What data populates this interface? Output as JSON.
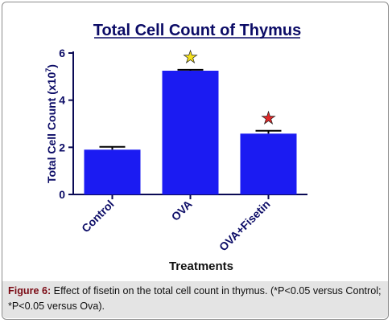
{
  "chart_data": {
    "type": "bar",
    "title": "Total Cell Count of Thymus",
    "xlabel": "Treatments",
    "ylabel": "Total Cell  Count (x10",
    "ylabel_superscript": "7",
    "ylabel_suffix": ")",
    "categories": [
      "Control",
      "OVA",
      "OVA+Fisetin"
    ],
    "values": [
      1.9,
      5.25,
      2.58
    ],
    "errors": [
      0.12,
      0.04,
      0.12
    ],
    "ylim": [
      0,
      6
    ],
    "yticks": [
      "0",
      "2",
      "4",
      "6"
    ],
    "significance_markers": [
      {
        "category": "OVA",
        "symbol": "★",
        "color": "#f5e11b"
      },
      {
        "category": "OVA+Fisetin",
        "symbol": "★",
        "color": "#e02828"
      }
    ],
    "bar_color": "#1b1bf2",
    "axis_color": "#0a0a55",
    "text_color": "#0b0b66",
    "grid": false
  },
  "caption": {
    "label": "Figure 6:",
    "text": " Effect of fisetin on the total cell count in thymus. (*P<0.05 versus Control; *P<0.05 versus Ova)."
  }
}
